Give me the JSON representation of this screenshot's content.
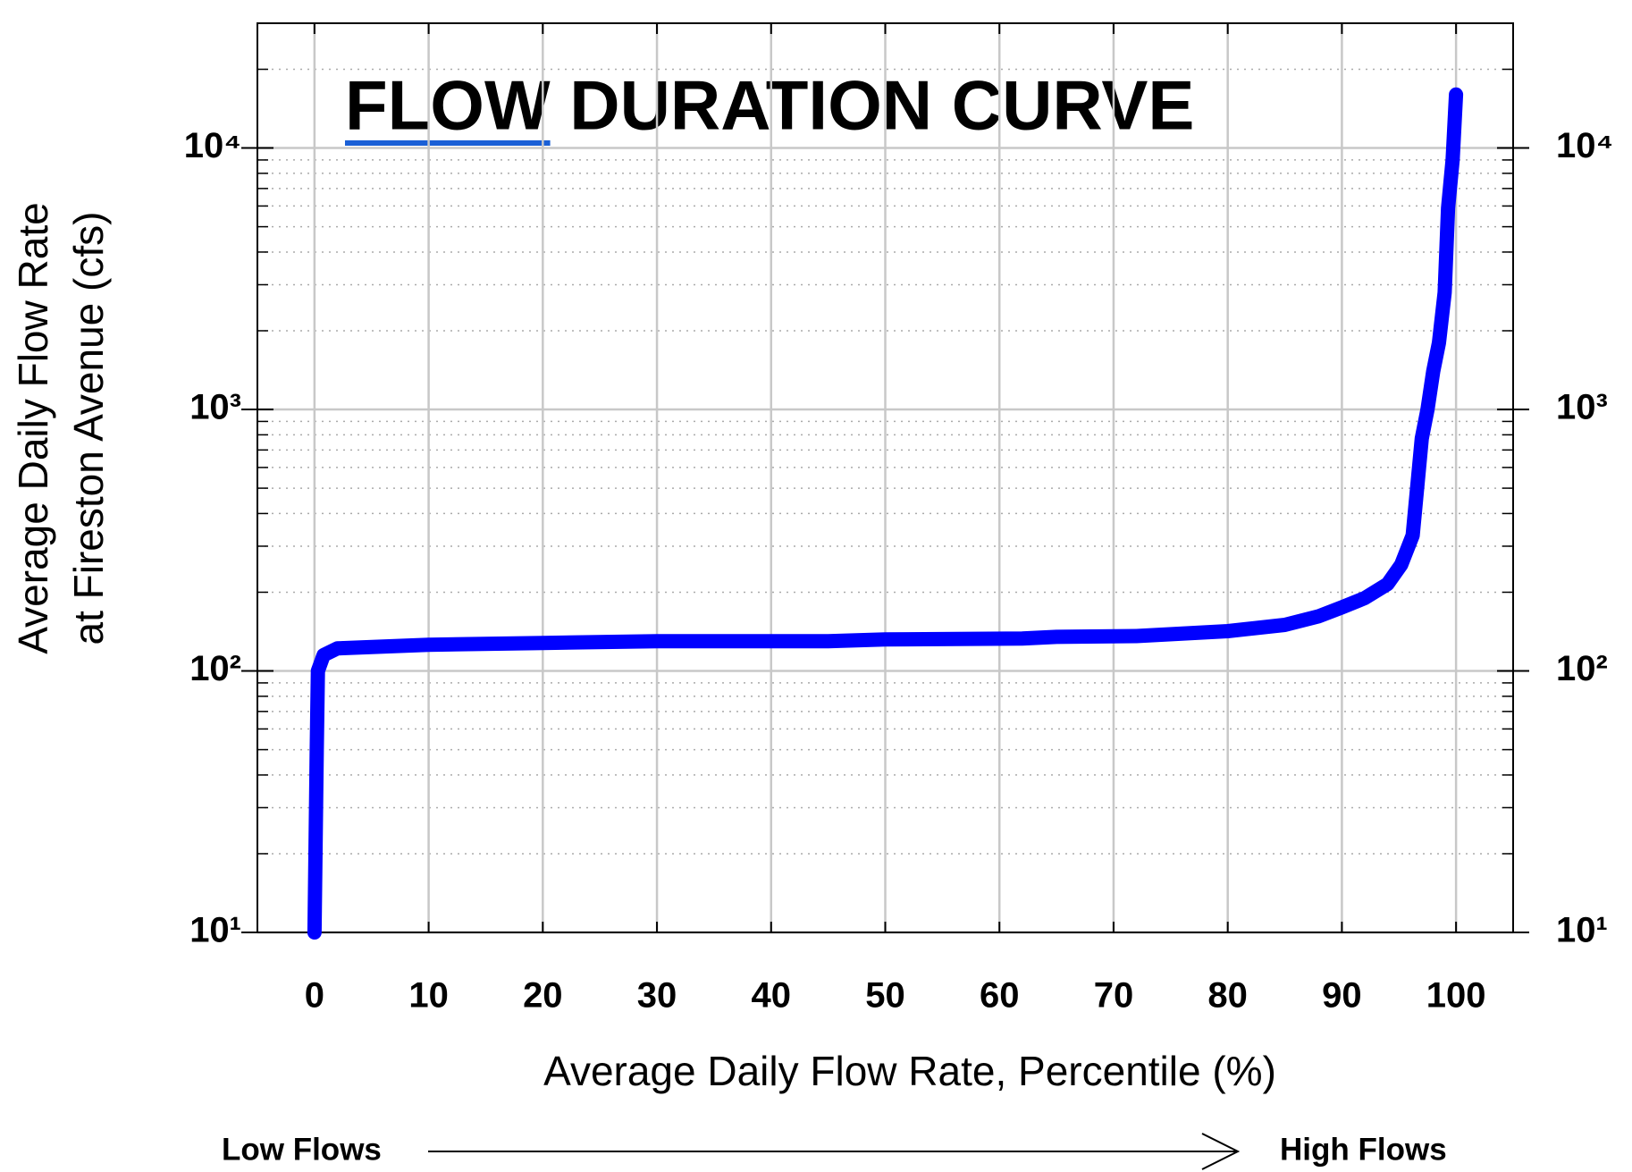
{
  "chart_data": {
    "type": "line",
    "title": "FLOW DURATION CURVE",
    "xlabel": "Average Daily Flow Rate, Percentile (%)",
    "ylabel": [
      "Average Daily Flow Rate",
      "at Fireston Avenue (cfs)"
    ],
    "annotations": [
      "Low Flows",
      "High Flows"
    ],
    "x": [
      0,
      0.2,
      0.3,
      0.8,
      2,
      10,
      20,
      30,
      45,
      50,
      62,
      65,
      72,
      80,
      85,
      88,
      90,
      92,
      94,
      95.2,
      96.2,
      97,
      97.5,
      98,
      98.5,
      99,
      99.3,
      99.7,
      100
    ],
    "series": [
      {
        "name": "Flow",
        "color": "#0000ff",
        "values": [
          10,
          50,
          100,
          115,
          122,
          126,
          128,
          130,
          130,
          132,
          133,
          135,
          136,
          142,
          150,
          162,
          175,
          190,
          215,
          255,
          330,
          775,
          1000,
          1400,
          1800,
          2800,
          5900,
          9000,
          16000
        ]
      }
    ],
    "xlim": [
      -5,
      105
    ],
    "xticks": [
      0,
      10,
      20,
      30,
      40,
      50,
      60,
      70,
      80,
      90,
      100
    ],
    "ylim": [
      10,
      30000
    ],
    "yscale": "log",
    "yticks": [
      {
        "value": 10,
        "label": "10¹"
      },
      {
        "value": 100,
        "label": "10²"
      },
      {
        "value": 1000,
        "label": "10³"
      },
      {
        "value": 10000,
        "label": "10⁴"
      }
    ],
    "yticks_minor": [
      20,
      30,
      40,
      50,
      60,
      70,
      80,
      90,
      200,
      300,
      400,
      500,
      600,
      700,
      800,
      900,
      2000,
      3000,
      4000,
      5000,
      6000,
      7000,
      8000,
      9000,
      20000
    ],
    "grid": true,
    "title_color": "#1a5fd6"
  }
}
